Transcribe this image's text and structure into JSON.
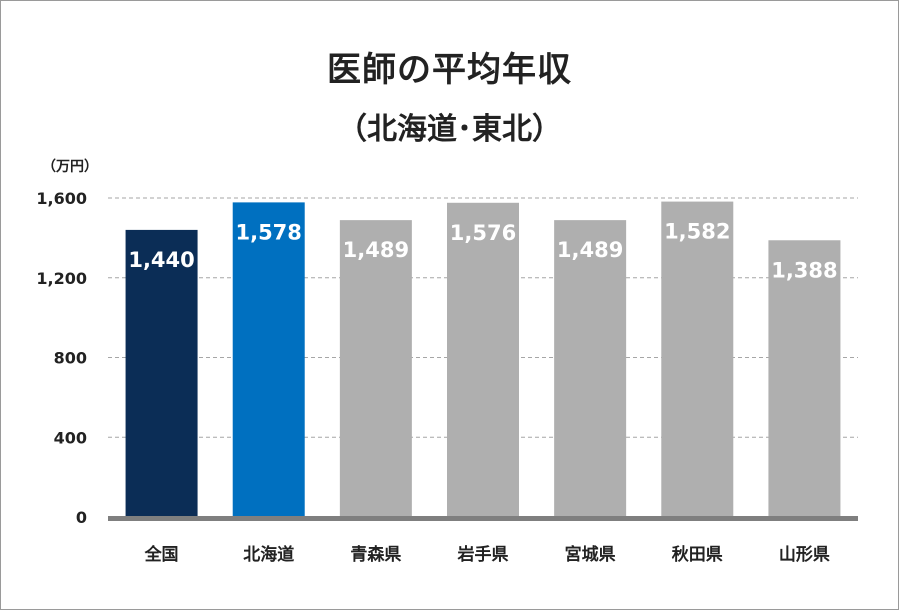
{
  "chart_data": {
    "type": "bar",
    "title": "医師の平均年収",
    "subtitle": "（北海道･東北）",
    "unit_label": "（万円）",
    "categories": [
      "全国",
      "北海道",
      "青森県",
      "岩手県",
      "宮城県",
      "秋田県",
      "山形県"
    ],
    "values": [
      1440,
      1578,
      1489,
      1576,
      1489,
      1582,
      1388
    ],
    "value_labels": [
      "1,440",
      "1,578",
      "1,489",
      "1,576",
      "1,489",
      "1,582",
      "1,388"
    ],
    "yticks": [
      0,
      400,
      800,
      1200,
      1600
    ],
    "ytick_labels": [
      "0",
      "400",
      "800",
      "1,200",
      "1,600"
    ],
    "ylim": [
      0,
      1600
    ],
    "grid": true,
    "colors": [
      "#0b2d56",
      "#0070c0",
      "#afafaf",
      "#afafaf",
      "#afafaf",
      "#afafaf",
      "#afafaf"
    ],
    "axis_color": "#7f7f7f",
    "grid_color": "#a6a6a6"
  }
}
